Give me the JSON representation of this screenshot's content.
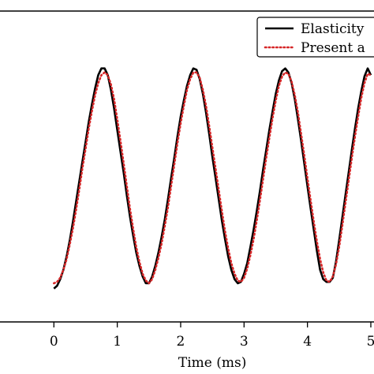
{
  "chart_data": {
    "type": "line",
    "title": "",
    "xlabel": "Time (ms)",
    "ylabel": "",
    "xlim": [
      -0.85,
      5.05
    ],
    "ylim": [
      -1.25,
      1.08
    ],
    "xticks": [
      0,
      1,
      2,
      3,
      4,
      5
    ],
    "xtick_labels": [
      "0",
      "1",
      "2",
      "3",
      "4",
      "5"
    ],
    "grid": false,
    "legend_position": "top-right",
    "series": [
      {
        "name": "Elasticity",
        "color": "#000000",
        "style": "solid",
        "x": [
          0.0,
          0.05,
          0.1,
          0.15,
          0.2,
          0.25,
          0.3,
          0.35,
          0.4,
          0.45,
          0.5,
          0.55,
          0.6,
          0.65,
          0.7,
          0.75,
          0.8,
          0.85,
          0.9,
          0.95,
          1.0,
          1.05,
          1.1,
          1.15,
          1.2,
          1.25,
          1.3,
          1.35,
          1.4,
          1.45,
          1.5,
          1.55,
          1.6,
          1.65,
          1.7,
          1.75,
          1.8,
          1.85,
          1.9,
          1.95,
          2.0,
          2.05,
          2.1,
          2.15,
          2.2,
          2.25,
          2.3,
          2.35,
          2.4,
          2.45,
          2.5,
          2.55,
          2.6,
          2.65,
          2.7,
          2.75,
          2.8,
          2.85,
          2.9,
          2.95,
          3.0,
          3.05,
          3.1,
          3.15,
          3.2,
          3.25,
          3.3,
          3.35,
          3.4,
          3.45,
          3.5,
          3.55,
          3.6,
          3.65,
          3.7,
          3.75,
          3.8,
          3.85,
          3.9,
          3.95,
          4.0,
          4.05,
          4.1,
          4.15,
          4.2,
          4.25,
          4.3,
          4.35,
          4.4,
          4.45,
          4.5,
          4.55,
          4.6,
          4.65,
          4.7,
          4.75,
          4.8,
          4.85,
          4.9,
          4.95,
          5.0
        ],
        "y": [
          -1.0,
          -0.98,
          -0.93,
          -0.86,
          -0.76,
          -0.64,
          -0.5,
          -0.35,
          -0.2,
          -0.05,
          0.1,
          0.25,
          0.38,
          0.5,
          0.6,
          0.65,
          0.65,
          0.6,
          0.49,
          0.35,
          0.19,
          0.03,
          -0.13,
          -0.3,
          -0.46,
          -0.6,
          -0.73,
          -0.83,
          -0.91,
          -0.96,
          -0.96,
          -0.91,
          -0.83,
          -0.73,
          -0.61,
          -0.48,
          -0.33,
          -0.17,
          -0.02,
          0.14,
          0.29,
          0.41,
          0.52,
          0.6,
          0.65,
          0.64,
          0.57,
          0.46,
          0.32,
          0.16,
          -0.01,
          -0.17,
          -0.33,
          -0.49,
          -0.63,
          -0.76,
          -0.86,
          -0.93,
          -0.96,
          -0.95,
          -0.89,
          -0.81,
          -0.69,
          -0.56,
          -0.42,
          -0.27,
          -0.11,
          0.04,
          0.19,
          0.33,
          0.46,
          0.56,
          0.63,
          0.65,
          0.62,
          0.54,
          0.42,
          0.27,
          0.11,
          -0.06,
          -0.23,
          -0.4,
          -0.56,
          -0.72,
          -0.86,
          -0.93,
          -0.95,
          -0.95,
          -0.92,
          -0.8,
          -0.64,
          -0.47,
          -0.3,
          -0.13,
          0.04,
          0.2,
          0.35,
          0.48,
          0.59,
          0.65,
          0.6
        ]
      },
      {
        "name": "Present a",
        "color": "#d62728",
        "style": "dotted",
        "x": [
          0.0,
          0.05,
          0.1,
          0.15,
          0.2,
          0.25,
          0.3,
          0.35,
          0.4,
          0.45,
          0.5,
          0.55,
          0.6,
          0.65,
          0.7,
          0.75,
          0.8,
          0.85,
          0.9,
          0.95,
          1.0,
          1.05,
          1.1,
          1.15,
          1.2,
          1.25,
          1.3,
          1.35,
          1.4,
          1.45,
          1.5,
          1.55,
          1.6,
          1.65,
          1.7,
          1.75,
          1.8,
          1.85,
          1.9,
          1.95,
          2.0,
          2.05,
          2.1,
          2.15,
          2.2,
          2.25,
          2.3,
          2.35,
          2.4,
          2.45,
          2.5,
          2.55,
          2.6,
          2.65,
          2.7,
          2.75,
          2.8,
          2.85,
          2.9,
          2.95,
          3.0,
          3.05,
          3.1,
          3.15,
          3.2,
          3.25,
          3.3,
          3.35,
          3.4,
          3.45,
          3.5,
          3.55,
          3.6,
          3.65,
          3.7,
          3.75,
          3.8,
          3.85,
          3.9,
          3.95,
          4.0,
          4.05,
          4.1,
          4.15,
          4.2,
          4.25,
          4.3,
          4.35,
          4.4,
          4.45,
          4.5,
          4.55,
          4.6,
          4.65,
          4.7,
          4.75,
          4.8,
          4.85,
          4.9,
          4.95,
          5.0
        ],
        "y": [
          -0.96,
          -0.95,
          -0.92,
          -0.86,
          -0.78,
          -0.67,
          -0.55,
          -0.41,
          -0.26,
          -0.1,
          0.05,
          0.2,
          0.33,
          0.45,
          0.54,
          0.6,
          0.62,
          0.6,
          0.53,
          0.42,
          0.27,
          0.11,
          -0.06,
          -0.23,
          -0.4,
          -0.55,
          -0.69,
          -0.8,
          -0.89,
          -0.94,
          -0.96,
          -0.93,
          -0.86,
          -0.77,
          -0.66,
          -0.53,
          -0.39,
          -0.23,
          -0.07,
          0.09,
          0.24,
          0.37,
          0.49,
          0.57,
          0.62,
          0.62,
          0.58,
          0.49,
          0.37,
          0.22,
          0.06,
          -0.1,
          -0.26,
          -0.42,
          -0.57,
          -0.7,
          -0.81,
          -0.89,
          -0.94,
          -0.95,
          -0.92,
          -0.85,
          -0.75,
          -0.63,
          -0.49,
          -0.34,
          -0.18,
          -0.02,
          0.13,
          0.28,
          0.41,
          0.52,
          0.59,
          0.62,
          0.61,
          0.55,
          0.45,
          0.32,
          0.16,
          0.0,
          -0.17,
          -0.34,
          -0.5,
          -0.65,
          -0.78,
          -0.88,
          -0.94,
          -0.95,
          -0.91,
          -0.82,
          -0.69,
          -0.53,
          -0.36,
          -0.19,
          -0.02,
          0.14,
          0.29,
          0.43,
          0.54,
          0.61,
          0.6
        ]
      }
    ]
  }
}
